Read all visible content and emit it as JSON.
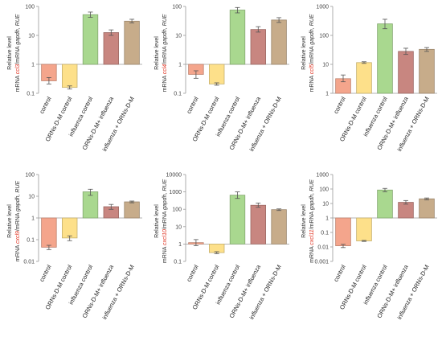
{
  "chart_data": [
    {
      "type": "bar",
      "yscale": "log",
      "ylim": [
        0.1,
        100
      ],
      "yticks": [
        "0.1",
        "1",
        "10",
        "100"
      ],
      "ylabel": {
        "line1": "Relative level",
        "prefix": "mRNA ",
        "gene": "ccl3",
        "suffix": "/mRNA ",
        "gapdh": "gapdh",
        "unit": ", RUE"
      },
      "categories": [
        "control",
        "ORNs-D-M control",
        "influenza control",
        "ORNs-D-M+ influenza",
        "influenza + ORNs-D-M"
      ],
      "values": [
        0.27,
        0.16,
        52,
        12.5,
        31
      ],
      "err_low": [
        0.21,
        0.14,
        42,
        10,
        27
      ],
      "err_high": [
        0.35,
        0.18,
        64,
        15.5,
        36
      ],
      "colors": [
        "#f4a58c",
        "#fde08a",
        "#a9d88f",
        "#c88680",
        "#c7ac8a"
      ],
      "grid": false
    },
    {
      "type": "bar",
      "yscale": "log",
      "ylim": [
        0.1,
        100
      ],
      "yticks": [
        "0.1",
        "1",
        "10",
        "100"
      ],
      "ylabel": {
        "line1": "Relative level",
        "prefix": "mRNA ",
        "gene": "ccl4",
        "suffix": "/mRNA ",
        "gapdh": "gapdh",
        "unit": ", RUE"
      },
      "categories": [
        "control",
        "ORNs-D-M control",
        "influenza control",
        "ORNs-D-M+ influenza",
        "influenza + ORNs-D-M"
      ],
      "values": [
        0.45,
        0.21,
        75,
        16,
        34
      ],
      "err_low": [
        0.33,
        0.19,
        60,
        13,
        28
      ],
      "err_high": [
        0.6,
        0.23,
        92,
        20,
        41
      ],
      "colors": [
        "#f4a58c",
        "#fde08a",
        "#a9d88f",
        "#c88680",
        "#c7ac8a"
      ],
      "grid": false
    },
    {
      "type": "bar",
      "yscale": "log",
      "ylim": [
        1,
        1000
      ],
      "yticks": [
        "1",
        "10",
        "100",
        "1000"
      ],
      "ylabel": {
        "line1": "Relative level",
        "prefix": "mRNA ",
        "gene": "ccl5",
        "suffix": "/mRNA ",
        "gapdh": "gapdh",
        "unit": ", RUE"
      },
      "categories": [
        "control",
        "ORNs-D-M control",
        "influenza control",
        "ORNs-D-M+ influenza",
        "influenza + ORNs-D-M"
      ],
      "values": [
        3.2,
        11.5,
        250,
        28,
        33
      ],
      "err_low": [
        2.5,
        10.8,
        170,
        22,
        28
      ],
      "err_high": [
        4.3,
        12.3,
        360,
        36,
        38
      ],
      "colors": [
        "#f4a58c",
        "#fde08a",
        "#a9d88f",
        "#c88680",
        "#c7ac8a"
      ],
      "grid": false
    },
    {
      "type": "bar",
      "yscale": "log",
      "ylim": [
        0.01,
        100
      ],
      "yticks": [
        "0.01",
        "0.1",
        "1",
        "10",
        "100"
      ],
      "ylabel": {
        "line1": "Relative level",
        "prefix": "mRNA ",
        "gene": "cxcl9",
        "suffix": "/mRNA ",
        "gapdh": "gapdh",
        "unit": ", RUE"
      },
      "categories": [
        "control",
        "ORNs-D-M control",
        "influenza control",
        "ORNs-D-M+ influenza",
        "influenza + ORNs-D-M"
      ],
      "values": [
        0.045,
        0.12,
        16,
        3.3,
        5.5
      ],
      "err_low": [
        0.035,
        0.09,
        11,
        2.5,
        5
      ],
      "err_high": [
        0.055,
        0.15,
        21,
        4.2,
        6
      ],
      "colors": [
        "#f4a58c",
        "#fde08a",
        "#a9d88f",
        "#c88680",
        "#c7ac8a"
      ],
      "grid": false
    },
    {
      "type": "bar",
      "yscale": "log",
      "ylim": [
        0.1,
        10000
      ],
      "yticks": [
        "0.1",
        "1",
        "10",
        "100",
        "1000",
        "10000"
      ],
      "ylabel": {
        "line1": "Relative level",
        "prefix": "mRNA ",
        "gene": "cxcl10",
        "suffix": "/mRNA ",
        "gapdh": "gapdh",
        "unit": ", RUE"
      },
      "categories": [
        "control",
        "ORNs-D-M control",
        "influenza control",
        "ORNs-D-M+ influenza",
        "influenza + ORNs-D-M"
      ],
      "values": [
        1.2,
        0.32,
        650,
        170,
        95
      ],
      "err_low": [
        0.8,
        0.28,
        420,
        130,
        85
      ],
      "err_high": [
        1.8,
        0.36,
        1000,
        230,
        105
      ],
      "colors": [
        "#f4a58c",
        "#fde08a",
        "#a9d88f",
        "#c88680",
        "#c7ac8a"
      ],
      "grid": false
    },
    {
      "type": "bar",
      "yscale": "log",
      "ylim": [
        0.001,
        1000
      ],
      "yticks": [
        "0.001",
        "0.01",
        "0.1",
        "1",
        "10",
        "100",
        "1000"
      ],
      "ylabel": {
        "line1": "Relative level",
        "prefix": "mRNA ",
        "gene": "cxcl11",
        "suffix": "/mRNA ",
        "gapdh": "gapdh",
        "unit": ", RUE"
      },
      "categories": [
        "control",
        "ORNs-D-M control",
        "influenza control",
        "ORNs-D-M+ influenza",
        "influenza + ORNs-D-M"
      ],
      "values": [
        0.012,
        0.026,
        85,
        12,
        21
      ],
      "err_low": [
        0.009,
        0.024,
        65,
        9,
        18
      ],
      "err_high": [
        0.015,
        0.028,
        110,
        16,
        24
      ],
      "colors": [
        "#f4a58c",
        "#fde08a",
        "#a9d88f",
        "#c88680",
        "#c7ac8a"
      ],
      "grid": false
    }
  ]
}
